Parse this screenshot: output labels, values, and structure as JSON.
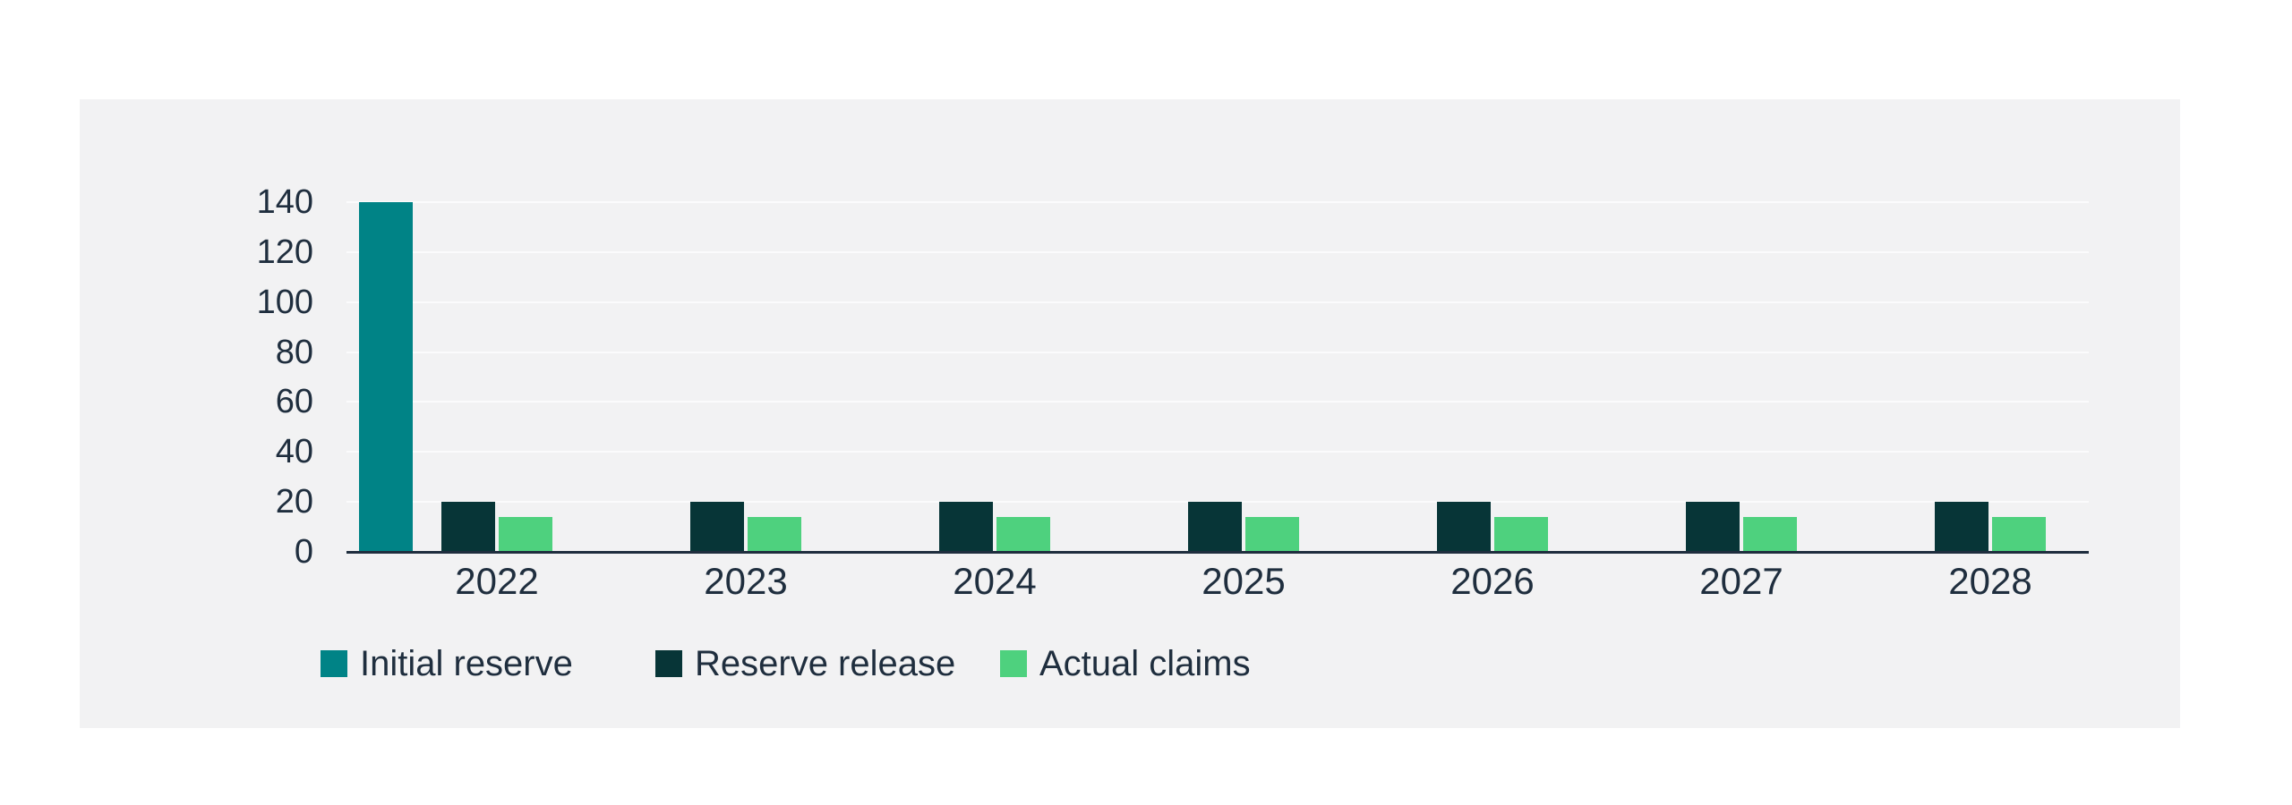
{
  "chart_data": {
    "type": "bar",
    "title": "",
    "xlabel": "",
    "ylabel": "",
    "categories": [
      "2022",
      "2023",
      "2024",
      "2025",
      "2026",
      "2027",
      "2028"
    ],
    "series": [
      {
        "name": "Initial reserve",
        "color": "#008386",
        "values": [
          140,
          0,
          0,
          0,
          0,
          0,
          0
        ]
      },
      {
        "name": "Reserve release",
        "color": "#073537",
        "values": [
          20,
          20,
          20,
          20,
          20,
          20,
          20
        ]
      },
      {
        "name": "Actual claims",
        "color": "#4ed17e",
        "values": [
          14,
          14,
          14,
          14,
          14,
          14,
          14
        ]
      }
    ],
    "ylim": [
      0,
      140
    ],
    "yticks": [
      0,
      20,
      40,
      60,
      80,
      100,
      120,
      140
    ],
    "grid": true,
    "gridline_color": "#fbfbfc",
    "legend_position": "bottom"
  },
  "colors": {
    "page_background": "#ffffff",
    "panel_background": "#f2f2f3",
    "axis_line": "#1f2e3e",
    "text": "#1f2e3e"
  }
}
